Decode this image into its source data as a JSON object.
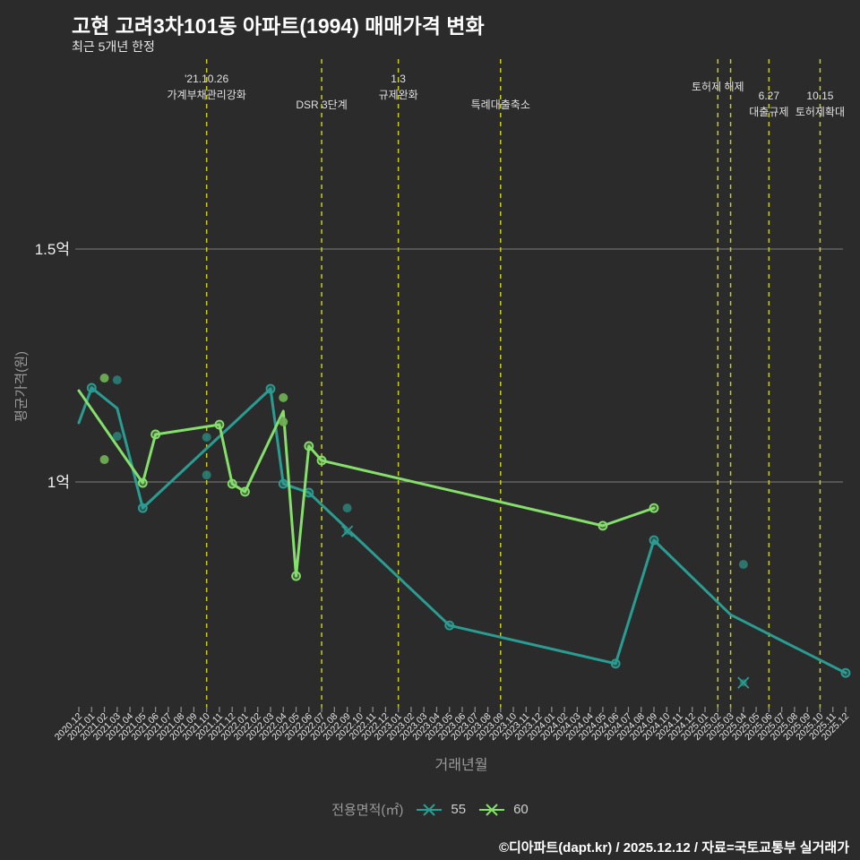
{
  "title": "고현 고려3차101동 아파트(1994) 매매가격 변화",
  "subtitle": "최근 5개년 한정",
  "footer_credit": "©디아파트(dapt.kr) / 2025.12.12 / 자료=국토교통부 실거래가",
  "colors": {
    "background": "#2b2b2b",
    "grid": "#9a9a9a",
    "annotation_line": "#d2d42c",
    "series_55": "#2a9d92",
    "series_55_muted": "#2a7a72",
    "series_60": "#85df6b",
    "series_60_muted": "#6fae55",
    "tick_label": "#e8e8e8",
    "annotation_text": "#e0e0e0",
    "axis_text": "#9a9a9a"
  },
  "legend": {
    "title": "전용면적(㎡)",
    "items": [
      {
        "label": "55",
        "color_key": "series_55"
      },
      {
        "label": "60",
        "color_key": "series_60"
      }
    ]
  },
  "chart_data": {
    "type": "line",
    "title": "고현 고려3차101동 아파트(1994) 매매가격 변화",
    "unit": "억원",
    "xlabel": "거래년월",
    "ylabel": "평균가격(원)",
    "y_ticks": [
      {
        "label": "1.5억",
        "value": 1.5
      },
      {
        "label": "1억",
        "value": 1.0
      }
    ],
    "x_categories": [
      "2020.12",
      "2021.01",
      "2021.02",
      "2021.03",
      "2021.04",
      "2021.05",
      "2021.06",
      "2021.07",
      "2021.08",
      "2021.09",
      "2021.10",
      "2021.11",
      "2021.12",
      "2022.01",
      "2022.02",
      "2022.03",
      "2022.04",
      "2022.05",
      "2022.06",
      "2022.07",
      "2022.08",
      "2022.09",
      "2022.10",
      "2022.11",
      "2022.12",
      "2023.01",
      "2023.02",
      "2023.03",
      "2023.04",
      "2023.05",
      "2023.06",
      "2023.07",
      "2023.08",
      "2023.09",
      "2023.10",
      "2023.11",
      "2023.12",
      "2024.01",
      "2024.02",
      "2024.03",
      "2024.04",
      "2024.05",
      "2024.06",
      "2024.07",
      "2024.08",
      "2024.09",
      "2024.10",
      "2024.11",
      "2024.12",
      "2025.01",
      "2025.02",
      "2025.03",
      "2025.04",
      "2025.05",
      "2025.06",
      "2025.07",
      "2025.08",
      "2025.09",
      "2025.10",
      "2025.11",
      "2025.12"
    ],
    "series": [
      {
        "name": "55",
        "color_key": "series_55",
        "points": [
          [
            "2020.12",
            1.127,
            0
          ],
          [
            "2021.01",
            1.202,
            1
          ],
          [
            "2021.03",
            1.158,
            0
          ],
          [
            "2021.05",
            0.944,
            1
          ],
          [
            "2022.03",
            1.2,
            1
          ],
          [
            "2022.04",
            0.996,
            1
          ],
          [
            "2022.06",
            0.977,
            1
          ],
          [
            "2023.05",
            0.692,
            1
          ],
          [
            "2024.06",
            0.61,
            1
          ],
          [
            "2024.09",
            0.875,
            1
          ],
          [
            "2025.03",
            0.715,
            0
          ],
          [
            "2025.12",
            0.59,
            1
          ]
        ]
      },
      {
        "name": "60",
        "color_key": "series_60",
        "points": [
          [
            "2020.12",
            1.196,
            0
          ],
          [
            "2021.05",
            0.998,
            1
          ],
          [
            "2021.06",
            1.102,
            1
          ],
          [
            "2021.11",
            1.123,
            1
          ],
          [
            "2021.12",
            0.996,
            1
          ],
          [
            "2022.01",
            0.979,
            1
          ],
          [
            "2022.04",
            1.152,
            0
          ],
          [
            "2022.05",
            0.798,
            1
          ],
          [
            "2022.06",
            1.077,
            1
          ],
          [
            "2022.07",
            1.046,
            1
          ],
          [
            "2024.05",
            0.906,
            1
          ],
          [
            "2024.09",
            0.944,
            1
          ]
        ]
      }
    ],
    "scatter_points": [
      {
        "series": "60",
        "month": "2021.02",
        "value": 1.223
      },
      {
        "series": "60",
        "month": "2021.02",
        "value": 1.048
      },
      {
        "series": "55",
        "month": "2021.03",
        "value": 1.219
      },
      {
        "series": "55",
        "month": "2021.03",
        "value": 1.098
      },
      {
        "series": "55",
        "month": "2021.10",
        "value": 1.096
      },
      {
        "series": "55",
        "month": "2021.10",
        "value": 1.015
      },
      {
        "series": "60",
        "month": "2022.04",
        "value": 1.181
      },
      {
        "series": "60",
        "month": "2022.04",
        "value": 1.129
      },
      {
        "series": "55",
        "month": "2022.09",
        "value": 0.944
      },
      {
        "series": "55",
        "month": "2025.04",
        "value": 0.823
      }
    ],
    "x_marks": [
      {
        "series": "55",
        "month": "2022.09",
        "value": 0.894
      },
      {
        "series": "55",
        "month": "2025.04",
        "value": 0.569
      }
    ],
    "annotations": [
      {
        "month": "2021.10",
        "lines": [
          "'21.10.26",
          "가계부채관리강화"
        ],
        "text_baseline_y": 92
      },
      {
        "month": "2022.07",
        "lines": [
          "DSR 3단계"
        ],
        "text_baseline_y": 121
      },
      {
        "month": "2023.01",
        "lines": [
          "1.3",
          "규제완화"
        ],
        "text_baseline_y": 92
      },
      {
        "month": "2023.09",
        "lines": [
          "특례대출축소"
        ],
        "text_baseline_y": 121
      },
      {
        "month": "2025.02",
        "lines": [
          "토허제 해제"
        ],
        "text_baseline_y": 101
      },
      {
        "month": "2025.03",
        "lines": [],
        "text_baseline_y": 0
      },
      {
        "month": "2025.06",
        "lines": [
          "6.27",
          "대출규제"
        ],
        "text_baseline_y": 111
      },
      {
        "month": "2025.10",
        "lines": [
          "10.15",
          "토허제확대"
        ],
        "text_baseline_y": 111
      }
    ],
    "legend_position": "bottom-center",
    "grid": "horizontal-only"
  }
}
